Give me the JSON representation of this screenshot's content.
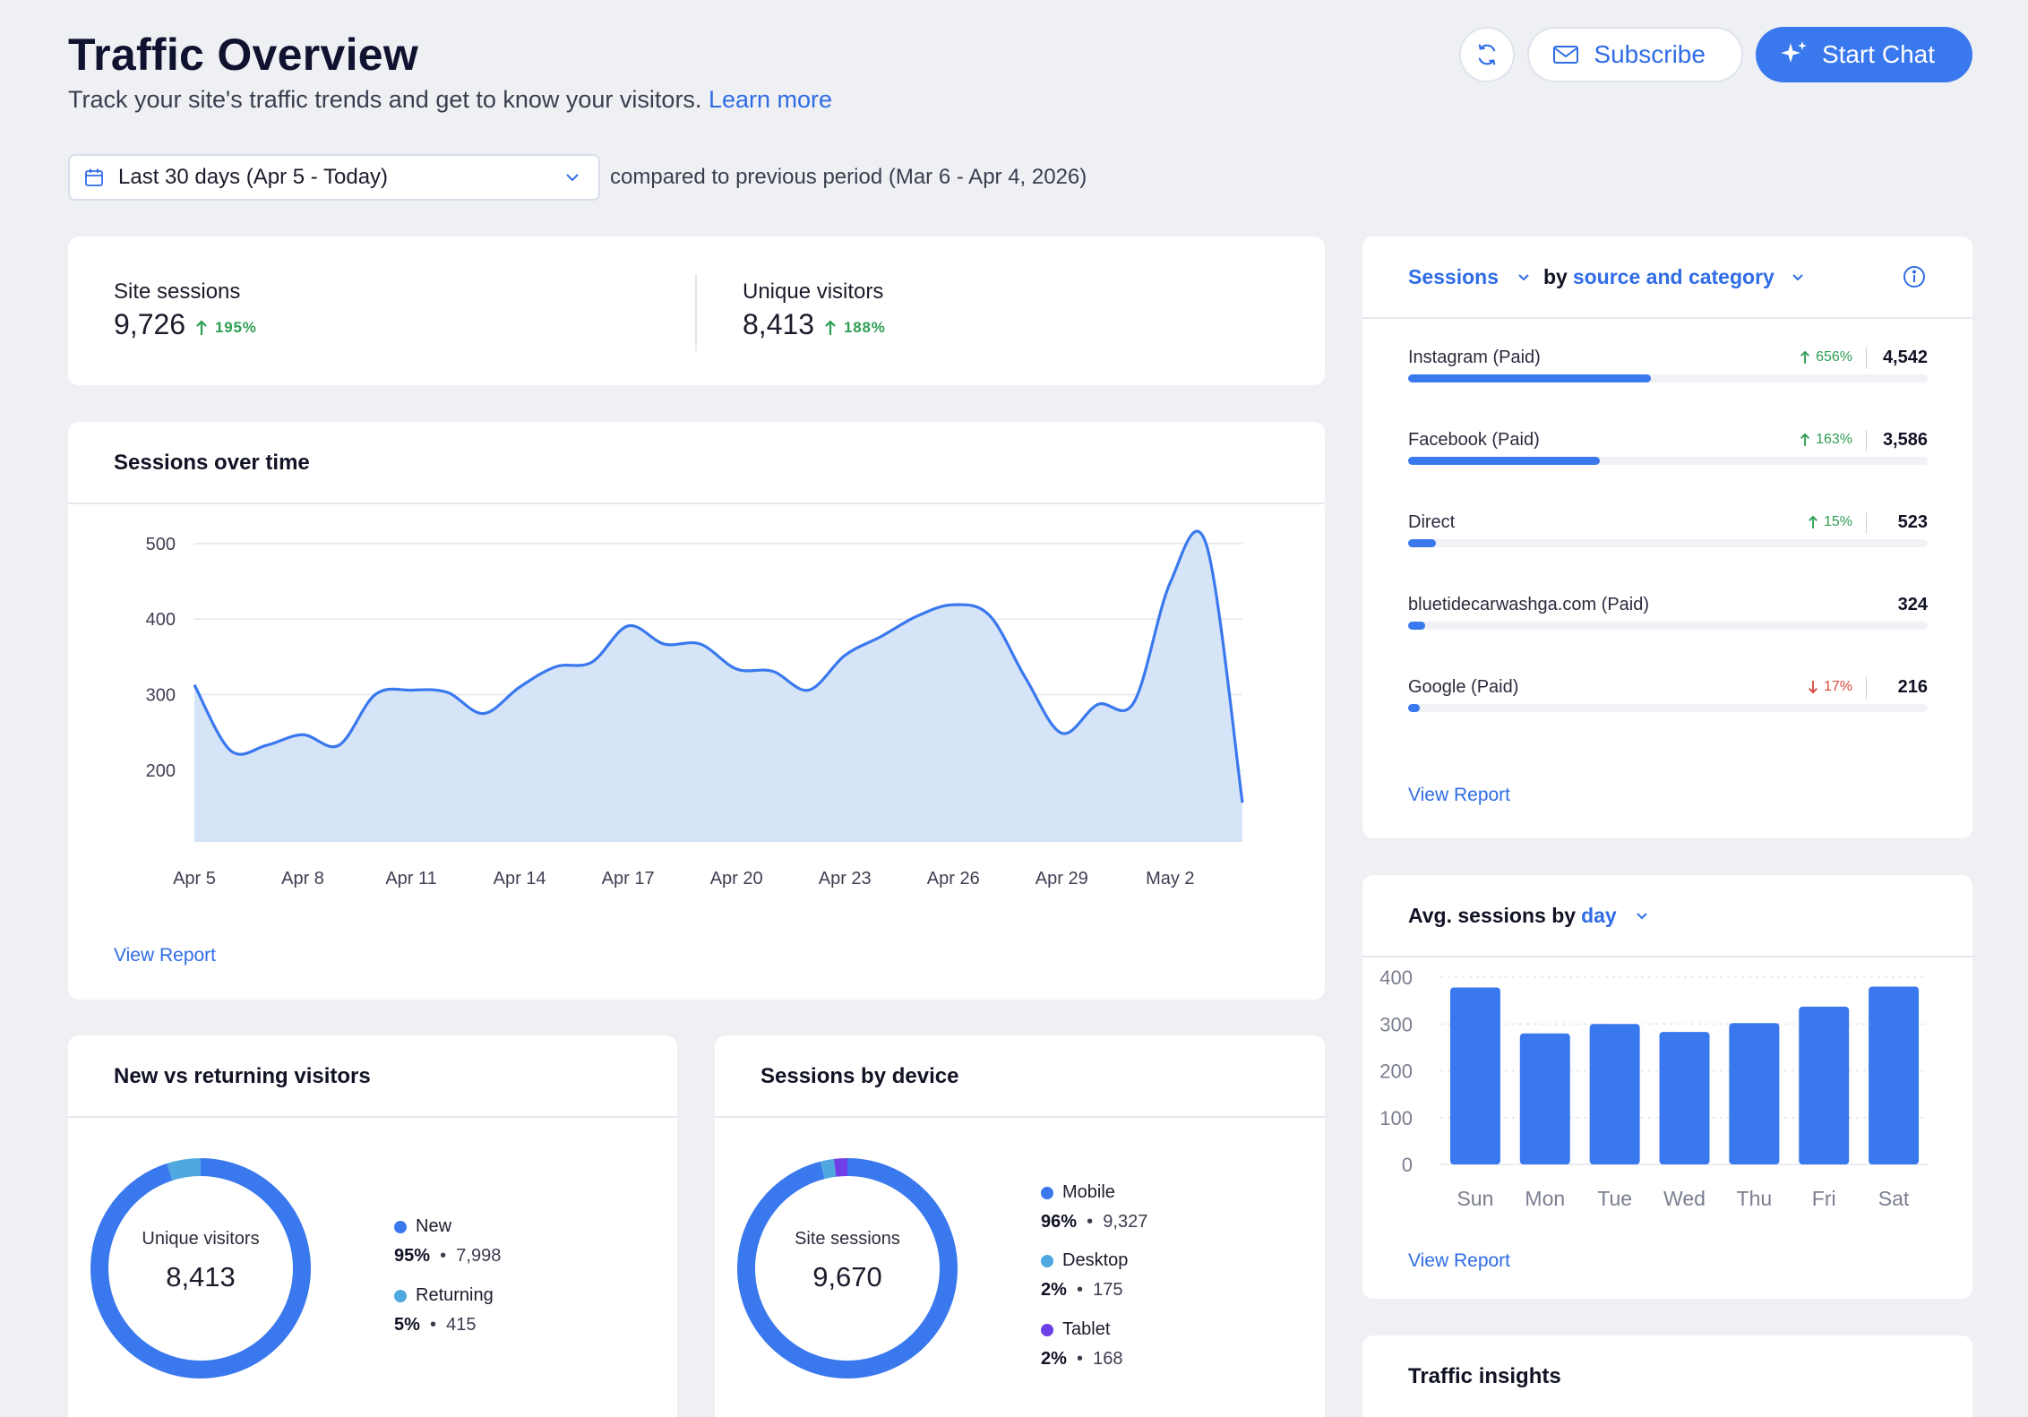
{
  "header": {
    "title": "Traffic Overview",
    "subtitle": "Track your site's traffic trends and get to know your visitors.",
    "learn_more": "Learn more",
    "refresh_icon": "refresh-icon",
    "subscribe_label": "Subscribe",
    "start_chat_label": "Start Chat"
  },
  "filter": {
    "date_range": "Last 30 days (Apr 5 - Today)",
    "comparison": "compared to previous period (Mar 6 - Apr 4, 2026)"
  },
  "kpis": [
    {
      "label": "Site sessions",
      "value": "9,726",
      "delta": "195%"
    },
    {
      "label": "Unique visitors",
      "value": "8,413",
      "delta": "188%"
    }
  ],
  "sessions_over_time": {
    "title": "Sessions over time",
    "view_report": "View Report",
    "chart_data": {
      "type": "area",
      "x_ticks": [
        "Apr 5",
        "Apr 8",
        "Apr 11",
        "Apr 14",
        "Apr 17",
        "Apr 20",
        "Apr 23",
        "Apr 26",
        "Apr 29",
        "May 2"
      ],
      "y_ticks": [
        200,
        300,
        400,
        500
      ],
      "ylim": [
        105,
        520
      ],
      "grid": true,
      "x": [
        "Apr 5",
        "Apr 6",
        "Apr 7",
        "Apr 8",
        "Apr 9",
        "Apr 10",
        "Apr 11",
        "Apr 12",
        "Apr 13",
        "Apr 14",
        "Apr 15",
        "Apr 16",
        "Apr 17",
        "Apr 18",
        "Apr 19",
        "Apr 20",
        "Apr 21",
        "Apr 22",
        "Apr 23",
        "Apr 24",
        "Apr 25",
        "Apr 26",
        "Apr 27",
        "Apr 28",
        "Apr 29",
        "Apr 30",
        "May 1",
        "May 2",
        "May 3",
        "May 4"
      ],
      "values": [
        313,
        226,
        233,
        247,
        233,
        300,
        306,
        303,
        275,
        310,
        337,
        343,
        391,
        367,
        367,
        334,
        331,
        306,
        352,
        377,
        404,
        419,
        405,
        322,
        249,
        287,
        290,
        448,
        499,
        157
      ]
    }
  },
  "sources": {
    "metric": "Sessions",
    "by_prefix": "by",
    "by_value": "source and category",
    "view_report": "View Report",
    "items": [
      {
        "name": "Instagram (Paid)",
        "pct": "656%",
        "dir": "up",
        "value": "4,542",
        "share": 0.4676
      },
      {
        "name": "Facebook (Paid)",
        "pct": "163%",
        "dir": "up",
        "value": "3,586",
        "share": 0.3692
      },
      {
        "name": "Direct",
        "pct": "15%",
        "dir": "up",
        "value": "523",
        "share": 0.0538
      },
      {
        "name": "bluetidecarwashga.com (Paid)",
        "pct": "",
        "dir": "none",
        "value": "324",
        "share": 0.0334
      },
      {
        "name": "Google (Paid)",
        "pct": "17%",
        "dir": "down",
        "value": "216",
        "share": 0.0222
      }
    ]
  },
  "avg_by_day": {
    "title_prefix": "Avg. sessions by",
    "title_value": "day",
    "view_report": "View Report",
    "chart_data": {
      "type": "bar",
      "categories": [
        "Sun",
        "Mon",
        "Tue",
        "Wed",
        "Thu",
        "Fri",
        "Sat"
      ],
      "values": [
        378,
        280,
        300,
        283,
        302,
        337,
        380
      ],
      "y_ticks": [
        0,
        100,
        200,
        300,
        400
      ],
      "ylim": [
        0,
        400
      ],
      "grid": true
    }
  },
  "new_vs_returning": {
    "title": "New vs returning visitors",
    "center_label": "Unique visitors",
    "center_value": "8,413",
    "chart_data": {
      "type": "pie",
      "slices": [
        {
          "name": "New",
          "pct_label": "95%",
          "count": "7,998",
          "value": 95,
          "color": "#3a78ee"
        },
        {
          "name": "Returning",
          "pct_label": "5%",
          "count": "415",
          "value": 5,
          "color": "#4fa8e0"
        }
      ]
    }
  },
  "sessions_by_device": {
    "title": "Sessions by device",
    "center_label": "Site sessions",
    "center_value": "9,670",
    "chart_data": {
      "type": "pie",
      "slices": [
        {
          "name": "Mobile",
          "pct_label": "96%",
          "count": "9,327",
          "value": 96,
          "color": "#3a78ee"
        },
        {
          "name": "Desktop",
          "pct_label": "2%",
          "count": "175",
          "value": 2,
          "color": "#4fa8e0"
        },
        {
          "name": "Tablet",
          "pct_label": "2%",
          "count": "168",
          "value": 2,
          "color": "#6e3fe6"
        }
      ]
    }
  },
  "traffic_insights": {
    "title": "Traffic insights"
  },
  "colors": {
    "accent": "#3a78ee",
    "link": "#2f6ce5",
    "positive": "#2e9e52",
    "negative": "#d9473b",
    "area_fill": "#d6e4f7"
  },
  "separator": "•"
}
